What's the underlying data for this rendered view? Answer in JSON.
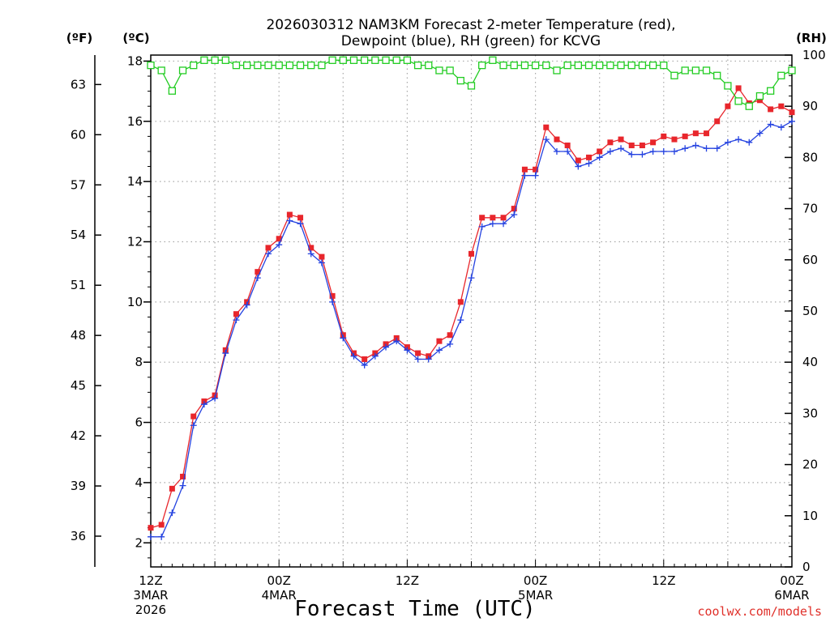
{
  "chart_data": {
    "type": "line",
    "title": [
      "2026030312 NAM3KM Forecast 2-meter Temperature (red),",
      "Dewpoint (blue), RH (green) for KCVG"
    ],
    "xlabel": "Forecast Time (UTC)",
    "credit": "coolwx.com/models",
    "left_outer_unit": "(ºF)",
    "left_unit": "(ºC)",
    "right_unit": "(RH)",
    "ylim_c": [
      1.2,
      18.2
    ],
    "ylim_rh": [
      0,
      100
    ],
    "x_range_hours": [
      0,
      60
    ],
    "celsius_ticks": [
      "2",
      "4",
      "6",
      "8",
      "10",
      "12",
      "14",
      "16",
      "18"
    ],
    "fahrenheit_ticks": [
      "36",
      "39",
      "42",
      "45",
      "48",
      "51",
      "54",
      "57",
      "60",
      "63"
    ],
    "rh_ticks": [
      "0",
      "10",
      "20",
      "30",
      "40",
      "50",
      "60",
      "70",
      "80",
      "90",
      "100"
    ],
    "x_ticks": [
      {
        "hour": 0,
        "lines": [
          "12Z",
          "3MAR",
          "2026"
        ]
      },
      {
        "hour": 12,
        "lines": [
          "00Z",
          "4MAR"
        ]
      },
      {
        "hour": 24,
        "lines": [
          "12Z"
        ]
      },
      {
        "hour": 36,
        "lines": [
          "00Z",
          "5MAR"
        ]
      },
      {
        "hour": 48,
        "lines": [
          "12Z"
        ]
      },
      {
        "hour": 60,
        "lines": [
          "00Z",
          "6MAR"
        ]
      }
    ],
    "series": [
      {
        "name": "Temperature",
        "unit": "C",
        "color": "#e8262c",
        "marker": "square-filled",
        "x": [
          0,
          1,
          2,
          3,
          4,
          5,
          6,
          7,
          8,
          9,
          10,
          11,
          12,
          13,
          14,
          15,
          16,
          17,
          18,
          19,
          20,
          21,
          22,
          23,
          24,
          25,
          26,
          27,
          28,
          29,
          30,
          31,
          32,
          33,
          34,
          35,
          36,
          37,
          38,
          39,
          40,
          41,
          42,
          43,
          44,
          45,
          46,
          47,
          48,
          49,
          50,
          51,
          52,
          53,
          54,
          55,
          56,
          57,
          58,
          59,
          60
        ],
        "values": [
          2.5,
          2.6,
          3.8,
          4.2,
          6.2,
          6.7,
          6.9,
          8.4,
          9.6,
          10.0,
          11.0,
          11.8,
          12.1,
          12.9,
          12.8,
          11.8,
          11.5,
          10.2,
          8.9,
          8.3,
          8.1,
          8.3,
          8.6,
          8.8,
          8.5,
          8.3,
          8.2,
          8.7,
          8.9,
          10.0,
          11.6,
          12.8,
          12.8,
          12.8,
          13.1,
          14.4,
          14.4,
          15.8,
          15.4,
          15.2,
          14.7,
          14.8,
          15.0,
          15.3,
          15.4,
          15.2,
          15.2,
          15.3,
          15.5,
          15.4,
          15.5,
          15.6,
          15.6,
          16.0,
          16.5,
          17.1,
          16.6,
          16.7,
          16.4,
          16.5,
          16.3
        ]
      },
      {
        "name": "Dewpoint",
        "unit": "C",
        "color": "#2442e0",
        "marker": "plus",
        "x": [
          0,
          1,
          2,
          3,
          4,
          5,
          6,
          7,
          8,
          9,
          10,
          11,
          12,
          13,
          14,
          15,
          16,
          17,
          18,
          19,
          20,
          21,
          22,
          23,
          24,
          25,
          26,
          27,
          28,
          29,
          30,
          31,
          32,
          33,
          34,
          35,
          36,
          37,
          38,
          39,
          40,
          41,
          42,
          43,
          44,
          45,
          46,
          47,
          48,
          49,
          50,
          51,
          52,
          53,
          54,
          55,
          56,
          57,
          58,
          59,
          60
        ],
        "values": [
          2.2,
          2.2,
          3.0,
          3.9,
          5.9,
          6.6,
          6.8,
          8.3,
          9.4,
          9.9,
          10.8,
          11.6,
          11.9,
          12.7,
          12.6,
          11.6,
          11.3,
          10.0,
          8.8,
          8.2,
          7.9,
          8.2,
          8.5,
          8.7,
          8.4,
          8.1,
          8.1,
          8.4,
          8.6,
          9.4,
          10.8,
          12.5,
          12.6,
          12.6,
          12.9,
          14.2,
          14.2,
          15.4,
          15.0,
          15.0,
          14.5,
          14.6,
          14.8,
          15.0,
          15.1,
          14.9,
          14.9,
          15.0,
          15.0,
          15.0,
          15.1,
          15.2,
          15.1,
          15.1,
          15.3,
          15.4,
          15.3,
          15.6,
          15.9,
          15.8,
          16.0
        ]
      },
      {
        "name": "RH",
        "unit": "%",
        "color": "#22cc22",
        "marker": "square-open",
        "x": [
          0,
          1,
          2,
          3,
          4,
          5,
          6,
          7,
          8,
          9,
          10,
          11,
          12,
          13,
          14,
          15,
          16,
          17,
          18,
          19,
          20,
          21,
          22,
          23,
          24,
          25,
          26,
          27,
          28,
          29,
          30,
          31,
          32,
          33,
          34,
          35,
          36,
          37,
          38,
          39,
          40,
          41,
          42,
          43,
          44,
          45,
          46,
          47,
          48,
          49,
          50,
          51,
          52,
          53,
          54,
          55,
          56,
          57,
          58,
          59,
          60
        ],
        "values": [
          98,
          97,
          93,
          97,
          98,
          99,
          99,
          99,
          98,
          98,
          98,
          98,
          98,
          98,
          98,
          98,
          98,
          99,
          99,
          99,
          99,
          99,
          99,
          99,
          99,
          98,
          98,
          97,
          97,
          95,
          94,
          98,
          99,
          98,
          98,
          98,
          98,
          98,
          97,
          98,
          98,
          98,
          98,
          98,
          98,
          98,
          98,
          98,
          98,
          96,
          97,
          97,
          97,
          96,
          94,
          91,
          90,
          92,
          93,
          96,
          97
        ]
      }
    ]
  }
}
